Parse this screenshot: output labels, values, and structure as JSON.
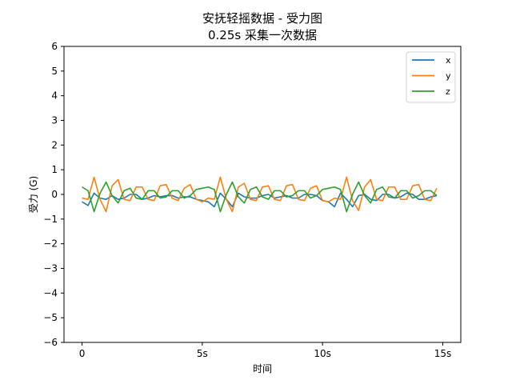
{
  "chart_data": {
    "type": "line",
    "title": "安抚轻摇数据 - 受力图",
    "subtitle": "0.25s 采集一次数据",
    "xlabel": "时间",
    "ylabel": "受力 (G)",
    "xlim": [
      -0.75,
      15.75
    ],
    "ylim": [
      -6,
      6
    ],
    "xticks": [
      {
        "value": 0,
        "label": "0"
      },
      {
        "value": 5,
        "label": "5s"
      },
      {
        "value": 10,
        "label": "10s"
      },
      {
        "value": 15,
        "label": "15s"
      }
    ],
    "yticks": [
      -6,
      -5,
      -4,
      -3,
      -2,
      -1,
      0,
      1,
      2,
      3,
      4,
      5,
      6
    ],
    "grid": false,
    "legend_position": "top-right",
    "x": [
      0,
      0.25,
      0.5,
      0.75,
      1,
      1.25,
      1.5,
      1.75,
      2,
      2.25,
      2.5,
      2.75,
      3,
      3.25,
      3.5,
      3.75,
      4,
      4.25,
      4.5,
      4.75,
      5,
      5.25,
      5.5,
      5.75,
      6,
      6.25,
      6.5,
      6.75,
      7,
      7.25,
      7.5,
      7.75,
      8,
      8.25,
      8.5,
      8.75,
      9,
      9.25,
      9.5,
      9.75,
      10,
      10.25,
      10.5,
      10.75,
      11,
      11.25,
      11.5,
      11.75,
      12,
      12.25,
      12.5,
      12.75,
      13,
      13.25,
      13.5,
      13.75,
      14,
      14.25,
      14.5,
      14.75
    ],
    "series": [
      {
        "name": "x",
        "color": "#1f77b4",
        "values": [
          -0.3,
          -0.45,
          0.05,
          -0.15,
          -0.2,
          -0.05,
          -0.2,
          -0.15,
          0.0,
          0.0,
          -0.2,
          -0.15,
          -0.05,
          -0.1,
          -0.05,
          -0.05,
          -0.15,
          -0.1,
          -0.1,
          -0.2,
          -0.25,
          -0.3,
          -0.5,
          0.05,
          -0.2,
          -0.5,
          0.05,
          -0.1,
          -0.15,
          -0.15,
          -0.05,
          0.0,
          -0.15,
          -0.1,
          -0.05,
          -0.15,
          -0.15,
          0.0,
          0.0,
          -0.05,
          -0.25,
          -0.3,
          -0.5,
          0.05,
          -0.2,
          -0.5,
          -0.05,
          0.0,
          -0.2,
          -0.25,
          0.0,
          0.0,
          -0.15,
          -0.1,
          0.05,
          0.0,
          -0.2,
          -0.2,
          -0.1,
          -0.05
        ]
      },
      {
        "name": "y",
        "color": "#ff7f0e",
        "values": [
          -0.15,
          -0.2,
          0.7,
          -0.2,
          -0.7,
          0.35,
          0.6,
          -0.2,
          -0.25,
          0.3,
          0.3,
          -0.2,
          -0.25,
          0.35,
          0.4,
          -0.15,
          -0.25,
          0.25,
          0.4,
          -0.2,
          -0.3,
          -0.15,
          -0.2,
          0.7,
          -0.2,
          -0.7,
          0.3,
          0.45,
          -0.2,
          -0.25,
          0.3,
          0.35,
          -0.2,
          -0.25,
          0.35,
          0.4,
          -0.2,
          -0.25,
          0.25,
          0.35,
          -0.25,
          -0.3,
          -0.15,
          -0.2,
          0.7,
          -0.25,
          -0.65,
          0.3,
          0.6,
          -0.2,
          -0.25,
          0.3,
          0.3,
          -0.2,
          -0.2,
          0.35,
          0.4,
          -0.2,
          -0.25,
          0.25
        ]
      },
      {
        "name": "z",
        "color": "#2ca02c",
        "values": [
          0.3,
          0.15,
          -0.7,
          0.05,
          0.5,
          -0.05,
          -0.35,
          0.15,
          0.25,
          -0.15,
          -0.2,
          0.15,
          0.15,
          -0.15,
          -0.1,
          0.15,
          0.15,
          -0.15,
          -0.05,
          0.2,
          0.25,
          0.3,
          0.2,
          -0.7,
          0.0,
          0.5,
          -0.1,
          -0.35,
          0.2,
          0.3,
          -0.1,
          -0.2,
          0.15,
          0.15,
          -0.1,
          -0.05,
          0.15,
          0.15,
          -0.15,
          -0.05,
          0.2,
          0.25,
          0.3,
          0.2,
          -0.7,
          0.0,
          0.5,
          -0.05,
          -0.35,
          0.2,
          0.3,
          -0.1,
          -0.15,
          0.15,
          0.15,
          -0.15,
          -0.05,
          0.15,
          0.15,
          -0.05
        ]
      }
    ]
  }
}
